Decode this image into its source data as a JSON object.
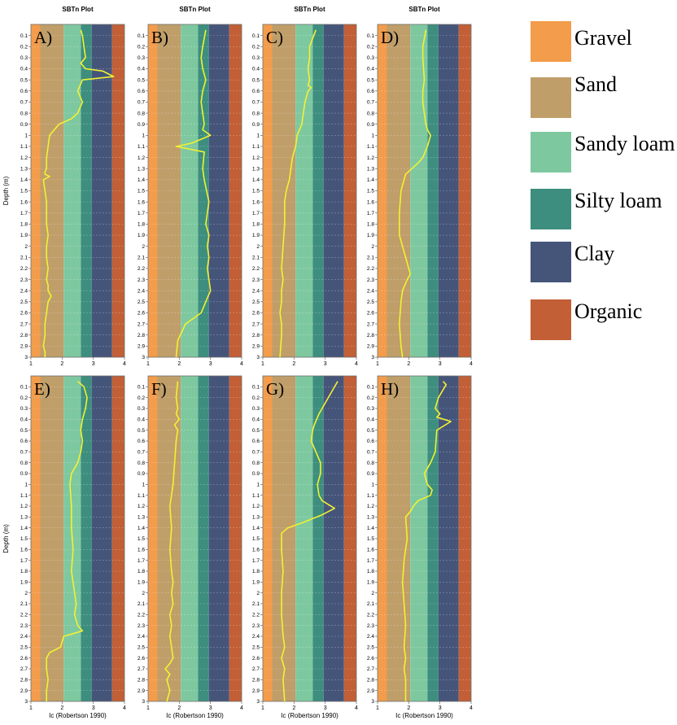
{
  "plot_title": "SBTn Plot",
  "depth_label": "Depth (m)",
  "ic_label": "Ic (Robertson 1990)",
  "zone_colors": {
    "gravel": "#f39c4b",
    "sand": "#bf9e69",
    "sandy_loam": "#7ec8a0",
    "silty_loam": "#3d8e7e",
    "clay": "#45557a",
    "organic": "#c25f36"
  },
  "line_color": "#f2f230",
  "legend": [
    {
      "key": "gravel",
      "label": "Gravel"
    },
    {
      "key": "sand",
      "label": "Sand"
    },
    {
      "key": "sandy_loam",
      "label": "Sandy loam"
    },
    {
      "key": "silty_loam",
      "label": "Silty loam"
    },
    {
      "key": "clay",
      "label": "Clay"
    },
    {
      "key": "organic",
      "label": "Organic"
    }
  ],
  "chart_data": [
    {
      "panel": "A)",
      "type": "line",
      "title": "SBTn Plot",
      "ylabel": "Depth (m)",
      "xlabel": "",
      "xlim": [
        1,
        4
      ],
      "ylim": [
        0,
        3
      ],
      "y_reversed": true,
      "zones": [
        {
          "name": "Gravel",
          "from": 1.0,
          "to": 1.3
        },
        {
          "name": "Sand",
          "from": 1.3,
          "to": 2.05
        },
        {
          "name": "Sandy loam",
          "from": 2.05,
          "to": 2.6
        },
        {
          "name": "Silty loam",
          "from": 2.6,
          "to": 2.95
        },
        {
          "name": "Clay",
          "from": 2.95,
          "to": 3.6
        },
        {
          "name": "Organic",
          "from": 3.6,
          "to": 4.0
        }
      ],
      "x": [
        2.6,
        2.65,
        2.7,
        2.75,
        2.6,
        2.75,
        3.3,
        3.65,
        2.65,
        2.5,
        2.65,
        2.5,
        2.3,
        1.9,
        1.6,
        1.55,
        1.5,
        1.5,
        1.45,
        1.45,
        1.6,
        1.4,
        1.45,
        1.5,
        1.5,
        1.5,
        1.55,
        1.5,
        1.5,
        1.55,
        1.5,
        1.55,
        1.55,
        1.65,
        1.55,
        1.5,
        1.45,
        1.45,
        1.4,
        1.45,
        1.45
      ],
      "y": [
        0.05,
        0.1,
        0.2,
        0.3,
        0.35,
        0.4,
        0.42,
        0.47,
        0.5,
        0.6,
        0.7,
        0.8,
        0.85,
        0.9,
        1.0,
        1.1,
        1.2,
        1.3,
        1.33,
        1.35,
        1.37,
        1.4,
        1.5,
        1.6,
        1.7,
        1.8,
        1.9,
        2.0,
        2.1,
        2.2,
        2.3,
        2.35,
        2.4,
        2.45,
        2.5,
        2.6,
        2.7,
        2.8,
        2.9,
        2.95,
        3.0
      ]
    },
    {
      "panel": "B)",
      "type": "line",
      "title": "SBTn Plot",
      "ylabel": "",
      "xlabel": "",
      "xlim": [
        1,
        4
      ],
      "ylim": [
        0,
        3
      ],
      "y_reversed": true,
      "zones": [
        {
          "name": "Gravel",
          "from": 1.0,
          "to": 1.3
        },
        {
          "name": "Sand",
          "from": 1.3,
          "to": 2.05
        },
        {
          "name": "Sandy loam",
          "from": 2.05,
          "to": 2.6
        },
        {
          "name": "Silty loam",
          "from": 2.6,
          "to": 2.95
        },
        {
          "name": "Clay",
          "from": 2.95,
          "to": 3.6
        },
        {
          "name": "Organic",
          "from": 3.6,
          "to": 4.0
        }
      ],
      "x": [
        2.85,
        2.75,
        2.7,
        2.75,
        2.85,
        2.75,
        2.7,
        2.75,
        2.8,
        2.75,
        3.0,
        2.4,
        1.9,
        2.8,
        2.75,
        2.8,
        2.95,
        2.9,
        2.85,
        2.95,
        2.9,
        2.95,
        2.9,
        3.0,
        2.85,
        2.7,
        2.2,
        1.95,
        1.9
      ],
      "y": [
        0.05,
        0.2,
        0.3,
        0.4,
        0.5,
        0.6,
        0.7,
        0.8,
        0.9,
        0.95,
        1.0,
        1.07,
        1.1,
        1.15,
        1.3,
        1.4,
        1.6,
        1.7,
        1.8,
        1.9,
        2.0,
        2.1,
        2.2,
        2.4,
        2.5,
        2.6,
        2.7,
        2.85,
        3.0
      ]
    },
    {
      "panel": "C)",
      "type": "line",
      "title": "SBTn Plot",
      "ylabel": "",
      "xlabel": "",
      "xlim": [
        1,
        4
      ],
      "ylim": [
        0,
        3
      ],
      "y_reversed": true,
      "zones": [
        {
          "name": "Gravel",
          "from": 1.0,
          "to": 1.3
        },
        {
          "name": "Sand",
          "from": 1.3,
          "to": 2.05
        },
        {
          "name": "Sandy loam",
          "from": 2.05,
          "to": 2.6
        },
        {
          "name": "Silty loam",
          "from": 2.6,
          "to": 2.95
        },
        {
          "name": "Clay",
          "from": 2.95,
          "to": 3.6
        },
        {
          "name": "Organic",
          "from": 3.6,
          "to": 4.0
        }
      ],
      "x": [
        2.7,
        2.5,
        2.5,
        2.45,
        2.5,
        2.45,
        2.55,
        2.45,
        2.35,
        2.3,
        2.25,
        2.1,
        2.05,
        1.95,
        1.9,
        1.85,
        1.75,
        1.7,
        1.7,
        1.65,
        1.6,
        1.65,
        1.6,
        1.6,
        1.55,
        1.6,
        1.6,
        1.55
      ],
      "y": [
        0.05,
        0.2,
        0.3,
        0.4,
        0.5,
        0.55,
        0.57,
        0.6,
        0.7,
        0.8,
        0.9,
        1.0,
        1.1,
        1.2,
        1.3,
        1.4,
        1.5,
        1.6,
        1.8,
        2.0,
        2.2,
        2.3,
        2.4,
        2.5,
        2.6,
        2.7,
        2.8,
        3.0
      ]
    },
    {
      "panel": "D)",
      "type": "line",
      "title": "SBTn Plot",
      "ylabel": "",
      "xlabel": "",
      "xlim": [
        1,
        4
      ],
      "ylim": [
        0,
        3
      ],
      "y_reversed": true,
      "zones": [
        {
          "name": "Gravel",
          "from": 1.0,
          "to": 1.3
        },
        {
          "name": "Sand",
          "from": 1.3,
          "to": 2.05
        },
        {
          "name": "Sandy loam",
          "from": 2.05,
          "to": 2.6
        },
        {
          "name": "Silty loam",
          "from": 2.6,
          "to": 2.95
        },
        {
          "name": "Clay",
          "from": 2.95,
          "to": 3.6
        },
        {
          "name": "Organic",
          "from": 3.6,
          "to": 4.0
        }
      ],
      "x": [
        2.55,
        2.45,
        2.45,
        2.5,
        2.45,
        2.45,
        2.5,
        2.55,
        2.6,
        2.7,
        2.6,
        2.45,
        2.3,
        2.1,
        1.9,
        1.75,
        1.7,
        1.7,
        1.8,
        1.9,
        2.0,
        2.05,
        1.95,
        1.8,
        1.75,
        1.7,
        1.75,
        1.8
      ],
      "y": [
        0.05,
        0.2,
        0.3,
        0.5,
        0.6,
        0.7,
        0.8,
        0.9,
        0.95,
        1.0,
        1.1,
        1.2,
        1.25,
        1.3,
        1.35,
        1.5,
        1.7,
        1.9,
        2.0,
        2.1,
        2.2,
        2.25,
        2.3,
        2.4,
        2.5,
        2.7,
        2.9,
        3.0
      ]
    },
    {
      "panel": "E)",
      "type": "line",
      "title": "",
      "ylabel": "Depth (m)",
      "xlabel": "Ic (Robertson 1990)",
      "xlim": [
        1,
        4
      ],
      "ylim": [
        0,
        3
      ],
      "y_reversed": true,
      "zones": [
        {
          "name": "Gravel",
          "from": 1.0,
          "to": 1.3
        },
        {
          "name": "Sand",
          "from": 1.3,
          "to": 2.05
        },
        {
          "name": "Sandy loam",
          "from": 2.05,
          "to": 2.6
        },
        {
          "name": "Silty loam",
          "from": 2.6,
          "to": 2.95
        },
        {
          "name": "Clay",
          "from": 2.95,
          "to": 3.6
        },
        {
          "name": "Organic",
          "from": 3.6,
          "to": 4.0
        }
      ],
      "x": [
        2.5,
        2.7,
        2.8,
        2.75,
        2.65,
        2.6,
        2.65,
        2.6,
        2.5,
        2.3,
        2.25,
        2.3,
        2.3,
        2.35,
        2.3,
        2.4,
        2.45,
        2.4,
        2.5,
        2.65,
        2.3,
        2.05,
        1.95,
        1.6,
        1.5,
        1.5,
        1.55,
        1.5,
        1.5
      ],
      "y": [
        0.05,
        0.1,
        0.2,
        0.3,
        0.4,
        0.5,
        0.6,
        0.7,
        0.8,
        0.9,
        1.0,
        1.2,
        1.4,
        1.6,
        1.8,
        2.0,
        2.1,
        2.2,
        2.3,
        2.35,
        2.38,
        2.4,
        2.5,
        2.55,
        2.6,
        2.7,
        2.8,
        2.9,
        3.0
      ]
    },
    {
      "panel": "F)",
      "type": "line",
      "title": "",
      "ylabel": "",
      "xlabel": "Ic (Robertson 1990)",
      "xlim": [
        1,
        4
      ],
      "ylim": [
        0,
        3
      ],
      "y_reversed": true,
      "zones": [
        {
          "name": "Gravel",
          "from": 1.0,
          "to": 1.3
        },
        {
          "name": "Sand",
          "from": 1.3,
          "to": 2.05
        },
        {
          "name": "Sandy loam",
          "from": 2.05,
          "to": 2.6
        },
        {
          "name": "Silty loam",
          "from": 2.6,
          "to": 2.95
        },
        {
          "name": "Clay",
          "from": 2.95,
          "to": 3.6
        },
        {
          "name": "Organic",
          "from": 3.6,
          "to": 4.0
        }
      ],
      "x": [
        1.95,
        1.9,
        1.95,
        1.9,
        2.0,
        1.85,
        1.95,
        1.9,
        1.85,
        1.8,
        1.7,
        1.75,
        1.7,
        1.75,
        1.8,
        1.75,
        1.8,
        1.7,
        1.75,
        1.7,
        1.75,
        1.8,
        1.7,
        1.55,
        1.7,
        1.6,
        1.65,
        1.7,
        1.6
      ],
      "y": [
        0.05,
        0.2,
        0.3,
        0.35,
        0.4,
        0.45,
        0.5,
        0.6,
        0.8,
        1.0,
        1.2,
        1.4,
        1.6,
        1.8,
        1.9,
        2.0,
        2.1,
        2.2,
        2.3,
        2.4,
        2.5,
        2.6,
        2.65,
        2.7,
        2.75,
        2.8,
        2.85,
        2.9,
        3.0
      ]
    },
    {
      "panel": "G)",
      "type": "line",
      "title": "",
      "ylabel": "",
      "xlabel": "Ic (Robertson 1990)",
      "xlim": [
        1,
        4
      ],
      "ylim": [
        0,
        3
      ],
      "y_reversed": true,
      "zones": [
        {
          "name": "Gravel",
          "from": 1.0,
          "to": 1.3
        },
        {
          "name": "Sand",
          "from": 1.3,
          "to": 2.05
        },
        {
          "name": "Sandy loam",
          "from": 2.05,
          "to": 2.6
        },
        {
          "name": "Silty loam",
          "from": 2.6,
          "to": 2.95
        },
        {
          "name": "Clay",
          "from": 2.95,
          "to": 3.6
        },
        {
          "name": "Organic",
          "from": 3.6,
          "to": 4.0
        }
      ],
      "x": [
        3.4,
        3.2,
        2.9,
        2.8,
        2.65,
        2.6,
        2.55,
        2.7,
        2.85,
        2.85,
        2.75,
        2.8,
        2.9,
        3.3,
        2.9,
        2.3,
        1.8,
        1.6,
        1.6,
        1.65,
        1.6,
        1.6,
        1.65,
        1.7,
        1.6,
        1.7,
        1.65,
        1.7
      ],
      "y": [
        0.05,
        0.15,
        0.3,
        0.35,
        0.45,
        0.5,
        0.6,
        0.7,
        0.8,
        0.9,
        1.0,
        1.1,
        1.15,
        1.22,
        1.28,
        1.35,
        1.4,
        1.45,
        1.6,
        1.8,
        2.0,
        2.2,
        2.4,
        2.5,
        2.6,
        2.7,
        2.8,
        3.0
      ]
    },
    {
      "panel": "H)",
      "type": "line",
      "title": "",
      "ylabel": "",
      "xlabel": "Ic (Robertson 1990)",
      "xlim": [
        1,
        4
      ],
      "ylim": [
        0,
        3
      ],
      "y_reversed": true,
      "zones": [
        {
          "name": "Gravel",
          "from": 1.0,
          "to": 1.3
        },
        {
          "name": "Sand",
          "from": 1.3,
          "to": 2.05
        },
        {
          "name": "Sandy loam",
          "from": 2.05,
          "to": 2.6
        },
        {
          "name": "Silty loam",
          "from": 2.6,
          "to": 2.95
        },
        {
          "name": "Clay",
          "from": 2.95,
          "to": 3.6
        },
        {
          "name": "Organic",
          "from": 3.6,
          "to": 4.0
        }
      ],
      "x": [
        3.1,
        3.2,
        2.95,
        2.85,
        3.0,
        2.9,
        3.35,
        2.9,
        2.85,
        2.7,
        2.5,
        2.6,
        2.75,
        2.7,
        2.3,
        2.15,
        2.05,
        1.9,
        1.95,
        1.85,
        1.8,
        1.85,
        1.9,
        1.85,
        1.9,
        1.85,
        1.9,
        1.9
      ],
      "y": [
        0.05,
        0.08,
        0.2,
        0.3,
        0.35,
        0.38,
        0.42,
        0.5,
        0.7,
        0.8,
        0.9,
        1.0,
        1.05,
        1.1,
        1.15,
        1.2,
        1.25,
        1.3,
        1.5,
        1.7,
        1.9,
        2.1,
        2.3,
        2.5,
        2.6,
        2.7,
        2.8,
        3.0
      ]
    }
  ]
}
